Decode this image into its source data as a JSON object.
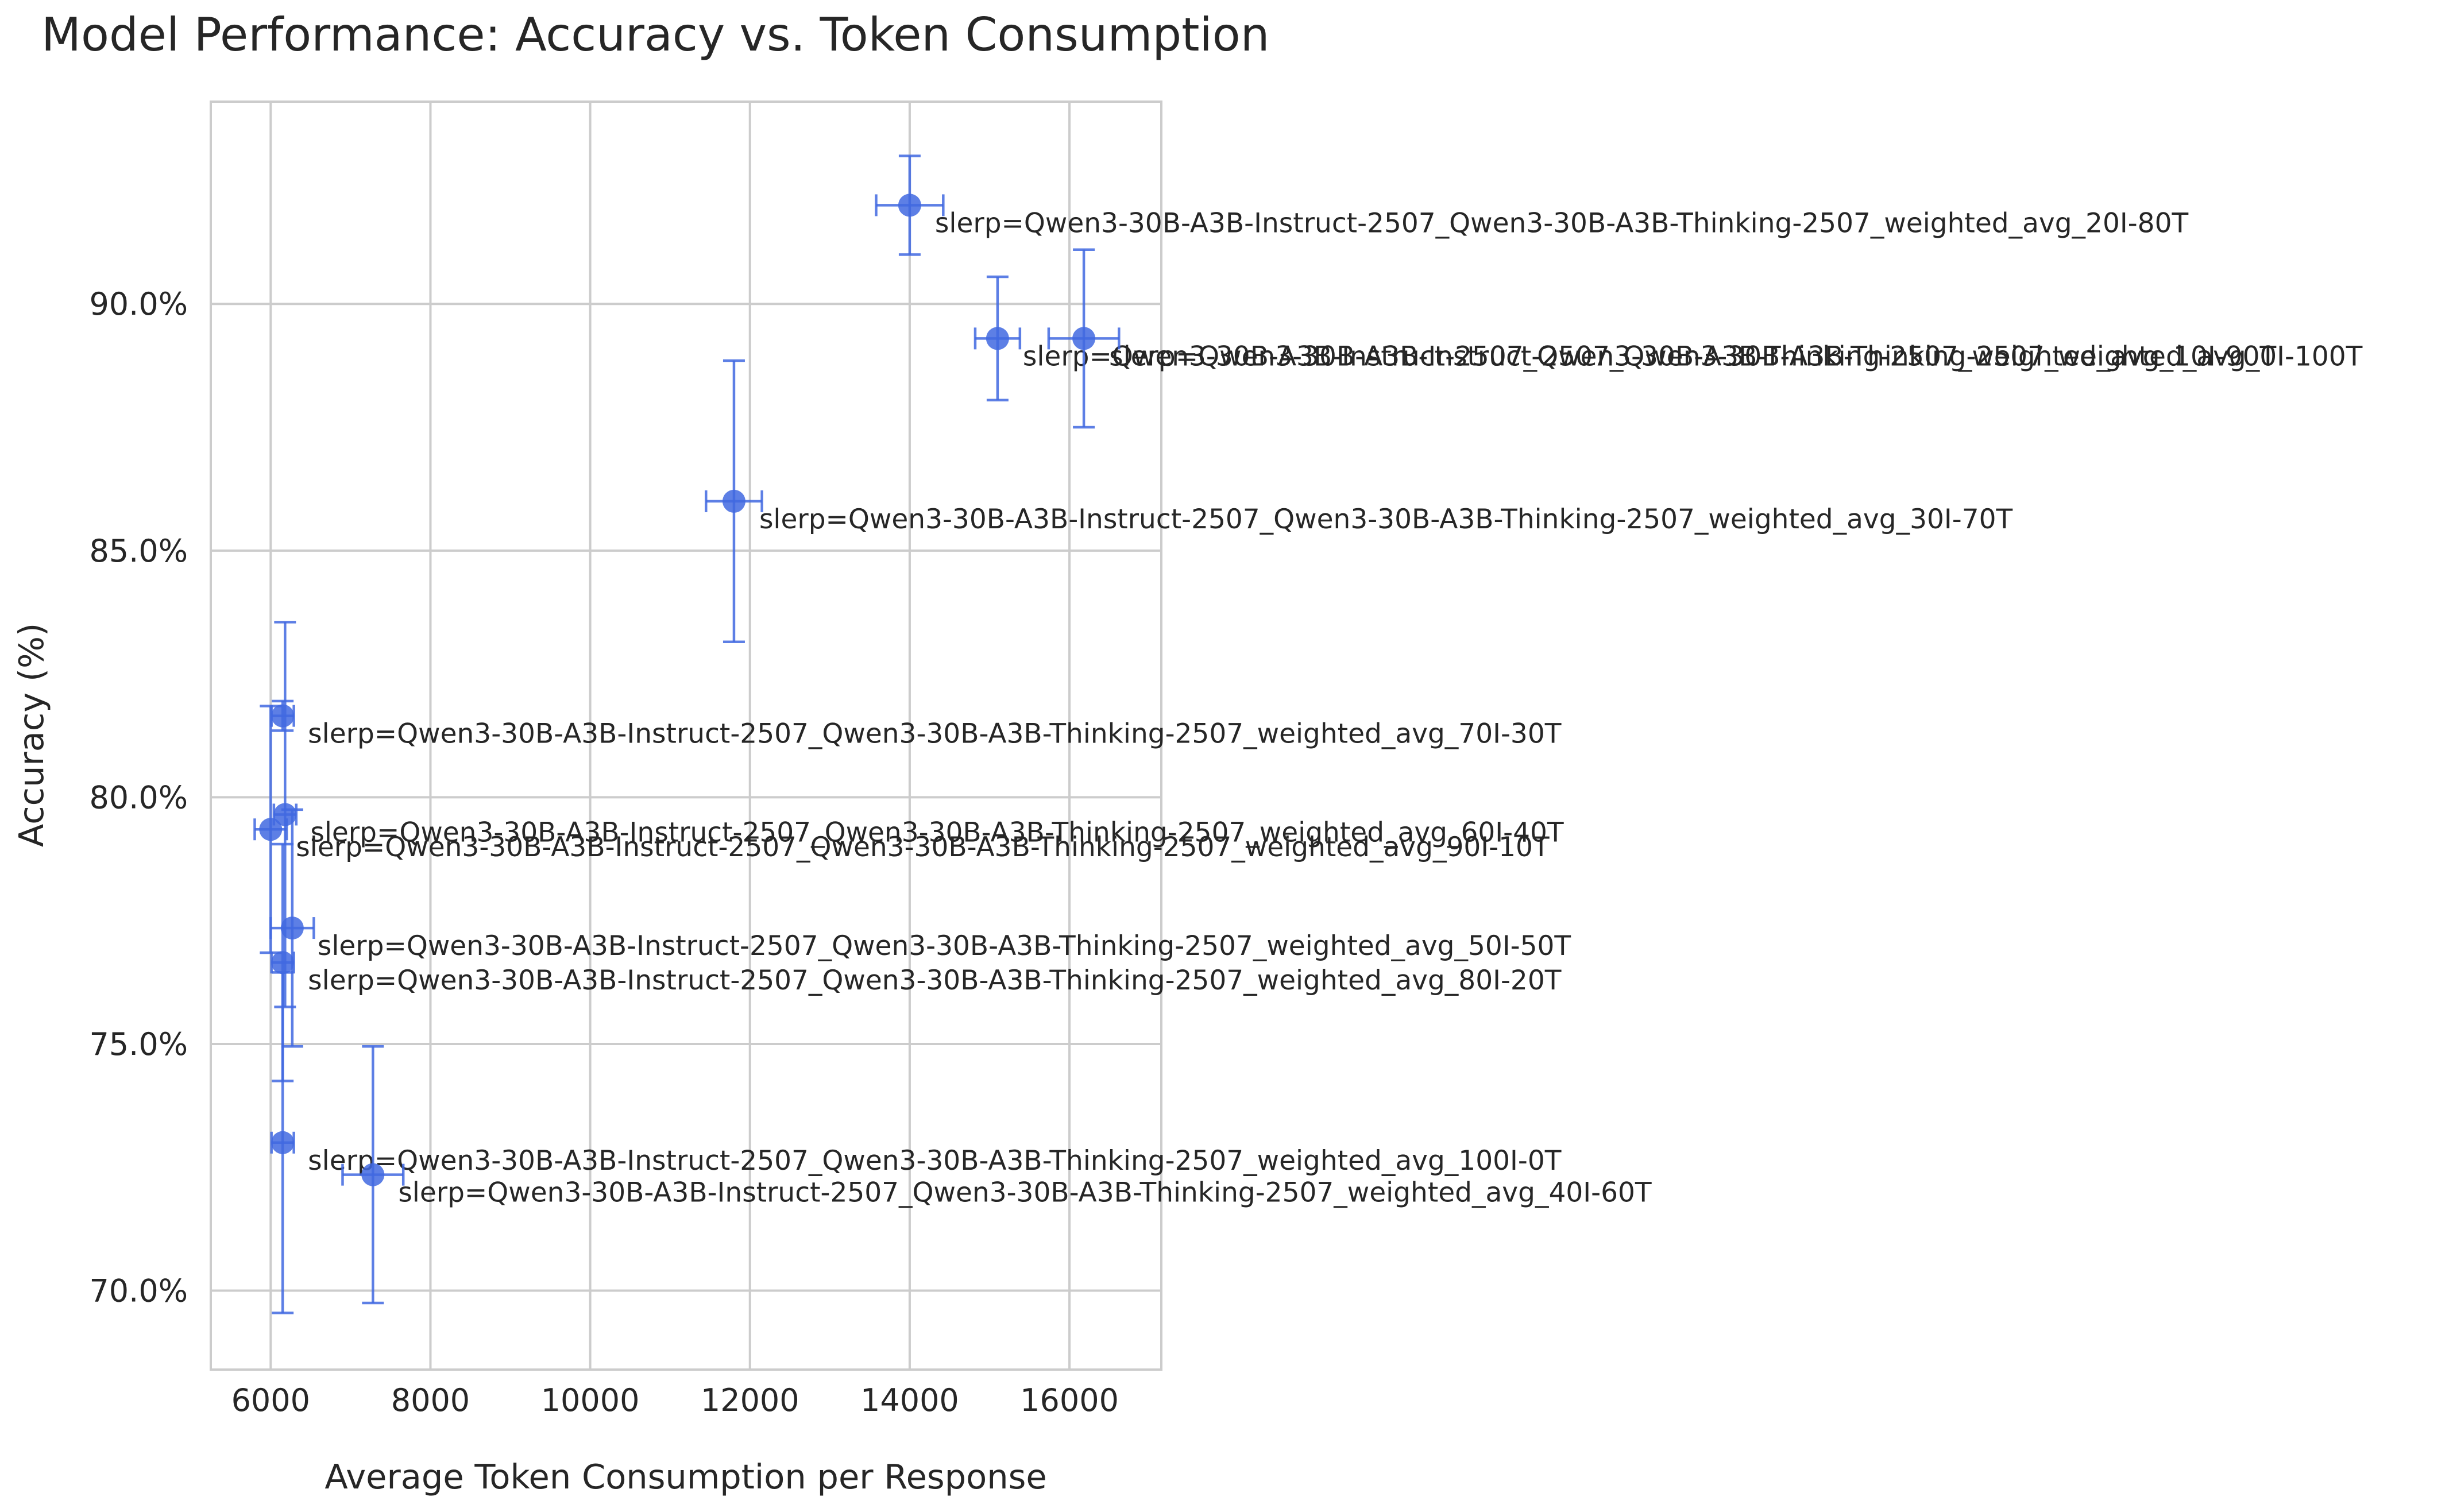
{
  "chart_data": {
    "type": "scatter",
    "title": "Model Performance: Accuracy vs. Token Consumption",
    "xlabel": "Average Token Consumption per Response",
    "ylabel": "Accuracy (%)",
    "xlim": [
      5250,
      17150
    ],
    "ylim": [
      68.4,
      94.1
    ],
    "xticks": [
      6000,
      8000,
      10000,
      12000,
      14000,
      16000
    ],
    "xtick_labels": [
      "6000",
      "8000",
      "10000",
      "12000",
      "14000",
      "16000"
    ],
    "yticks": [
      70,
      75,
      80,
      85,
      90
    ],
    "ytick_labels": [
      "70.0%",
      "75.0%",
      "80.0%",
      "85.0%",
      "90.0%"
    ],
    "grid": true,
    "point_color": "#4169e1",
    "points": [
      {
        "label": "slerp=Qwen3-30B-A3B-Instruct-2507_Qwen3-30B-A3B-Thinking-2507_weighted_avg_20I-80T",
        "x": 14000,
        "y": 92.0,
        "x_err": 420,
        "y_err": 1.0
      },
      {
        "label": "slerp=Qwen3-30B-A3B-Instruct-2507_Qwen3-30B-A3B-Thinking-2507_weighted_avg_10I-90T",
        "x": 15100,
        "y": 89.3,
        "x_err": 280,
        "y_err": 1.25
      },
      {
        "label": "slerp=Qwen3-30B-A3B-Instruct-2507_Qwen3-30B-A3B-Thinking-2507_weighted_avg_0I-100T",
        "x": 16180,
        "y": 89.3,
        "x_err": 440,
        "y_err": 1.8
      },
      {
        "label": "slerp=Qwen3-30B-A3B-Instruct-2507_Qwen3-30B-A3B-Thinking-2507_weighted_avg_30I-70T",
        "x": 11800,
        "y": 86.0,
        "x_err": 350,
        "y_err": 2.85
      },
      {
        "label": "slerp=Qwen3-30B-A3B-Instruct-2507_Qwen3-30B-A3B-Thinking-2507_weighted_avg_70I-30T",
        "x": 6150,
        "y": 81.65,
        "x_err": 140,
        "y_err": 0.3
      },
      {
        "label": "slerp=Qwen3-30B-A3B-Instruct-2507_Qwen3-30B-A3B-Thinking-2507_weighted_avg_60I-40T",
        "x": 6180,
        "y": 79.65,
        "x_err": 140,
        "y_err": 3.9
      },
      {
        "label": "slerp=Qwen3-30B-A3B-Instruct-2507_Qwen3-30B-A3B-Thinking-2507_weighted_avg_90I-10T",
        "x": 6000,
        "y": 79.35,
        "x_err": 200,
        "y_err": 2.5
      },
      {
        "label": "slerp=Qwen3-30B-A3B-Instruct-2507_Qwen3-30B-A3B-Thinking-2507_weighted_avg_50I-50T",
        "x": 6270,
        "y": 77.35,
        "x_err": 270,
        "y_err": 2.4
      },
      {
        "label": "slerp=Qwen3-30B-A3B-Instruct-2507_Qwen3-30B-A3B-Thinking-2507_weighted_avg_80I-20T",
        "x": 6150,
        "y": 76.65,
        "x_err": 140,
        "y_err": 2.4
      },
      {
        "label": "slerp=Qwen3-30B-A3B-Instruct-2507_Qwen3-30B-A3B-Thinking-2507_weighted_avg_100I-0T",
        "x": 6150,
        "y": 73.0,
        "x_err": 140,
        "y_err": 3.45
      },
      {
        "label": "slerp=Qwen3-30B-A3B-Instruct-2507_Qwen3-30B-A3B-Thinking-2507_weighted_avg_40I-60T",
        "x": 7280,
        "y": 72.35,
        "x_err": 380,
        "y_err": 2.6
      }
    ]
  }
}
